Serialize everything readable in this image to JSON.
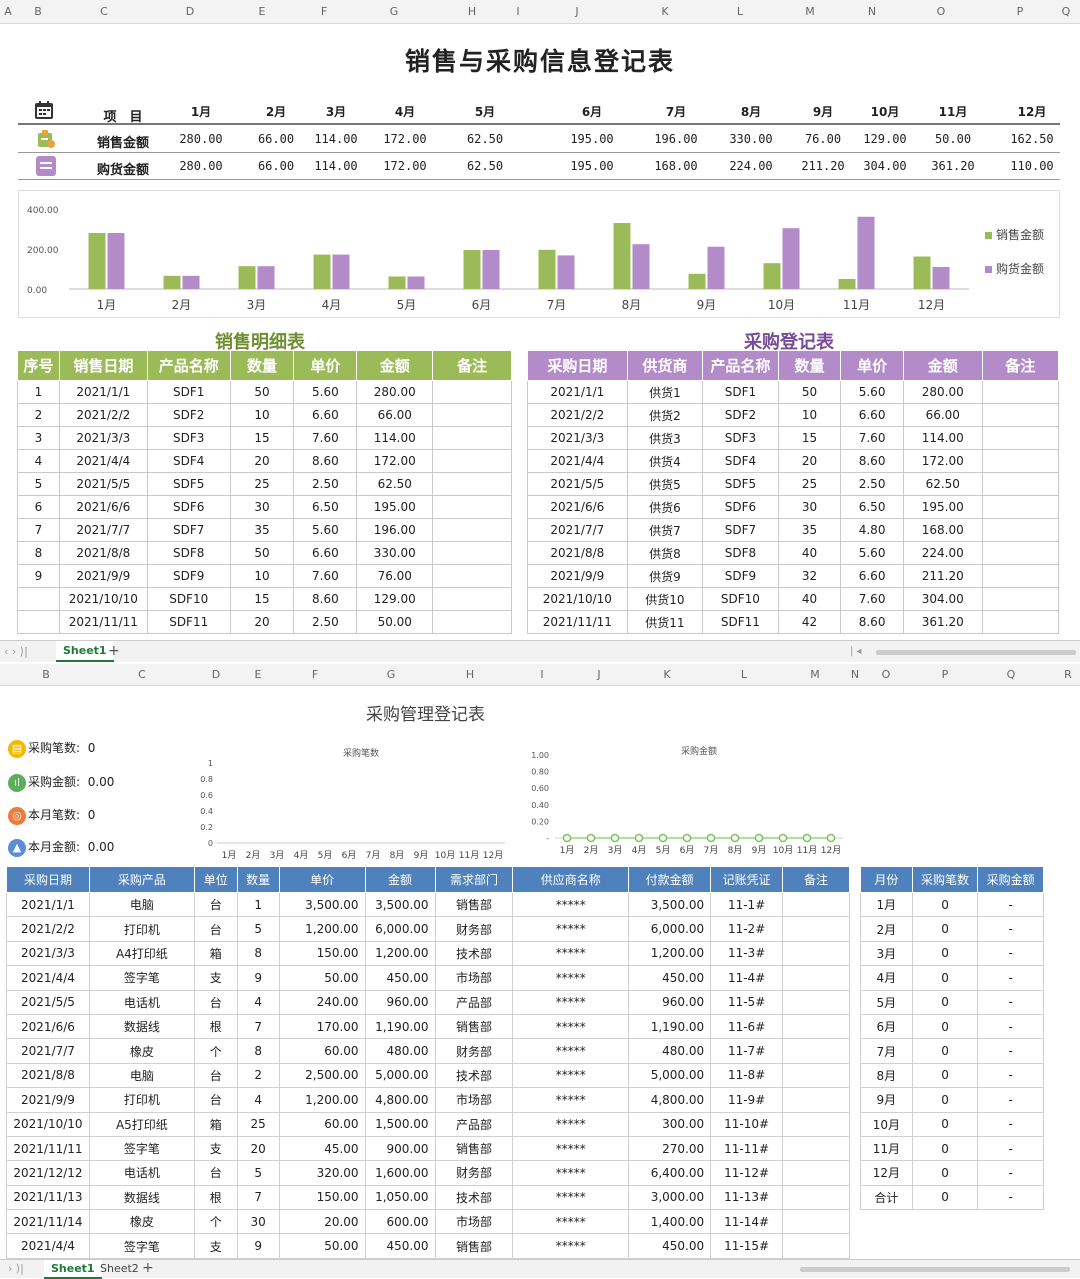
{
  "top_col_headers": [
    "A",
    "B",
    "C",
    "D",
    "E",
    "F",
    "G",
    "H",
    "I",
    "J",
    "K",
    "L",
    "M",
    "N",
    "O",
    "P",
    "Q"
  ],
  "title1": "销售与采购信息登记表",
  "summary": {
    "header_label": "项　目",
    "months": [
      "1月",
      "2月",
      "3月",
      "4月",
      "5月",
      "6月",
      "7月",
      "8月",
      "9月",
      "10月",
      "11月",
      "12月"
    ],
    "sales_label": "销售金额",
    "sales": [
      "280.00",
      "66.00",
      "114.00",
      "172.00",
      "62.50",
      "195.00",
      "196.00",
      "330.00",
      "76.00",
      "129.00",
      "50.00",
      "162.50"
    ],
    "purchase_label": "购货金额",
    "purchase": [
      "280.00",
      "66.00",
      "114.00",
      "172.00",
      "62.50",
      "195.00",
      "168.00",
      "224.00",
      "211.20",
      "304.00",
      "361.20",
      "110.00"
    ]
  },
  "chart_data": [
    {
      "type": "bar",
      "title": "",
      "categories": [
        "1月",
        "2月",
        "3月",
        "4月",
        "5月",
        "6月",
        "7月",
        "8月",
        "9月",
        "10月",
        "11月",
        "12月"
      ],
      "series": [
        {
          "name": "销售金额",
          "values": [
            280,
            66,
            114,
            172,
            62.5,
            195,
            196,
            330,
            76,
            129,
            50,
            162.5
          ]
        },
        {
          "name": "购货金额",
          "values": [
            280,
            66,
            114,
            172,
            62.5,
            195,
            168,
            224,
            211.2,
            304,
            361.2,
            110
          ]
        }
      ],
      "ylim": [
        0,
        400
      ],
      "yticks": [
        "0.00",
        "200.00",
        "400.00"
      ],
      "legend": "right",
      "colors": [
        "#9bbb59",
        "#b28bc8"
      ]
    },
    {
      "type": "line",
      "title": "采购笔数",
      "categories": [
        "1月",
        "2月",
        "3月",
        "4月",
        "5月",
        "6月",
        "7月",
        "8月",
        "9月",
        "10月",
        "11月",
        "12月"
      ],
      "values": [
        0,
        0,
        0,
        0,
        0,
        0,
        0,
        0,
        0,
        0,
        0,
        0
      ],
      "ylim": [
        0,
        1
      ],
      "yticks": [
        "0",
        "0.2",
        "0.4",
        "0.6",
        "0.8",
        "1"
      ]
    },
    {
      "type": "line",
      "title": "采购金额",
      "categories": [
        "1月",
        "2月",
        "3月",
        "4月",
        "5月",
        "6月",
        "7月",
        "8月",
        "9月",
        "10月",
        "11月",
        "12月"
      ],
      "values": [
        0,
        0,
        0,
        0,
        0,
        0,
        0,
        0,
        0,
        0,
        0,
        0
      ],
      "ylim": [
        0,
        1
      ],
      "yticks": [
        "-",
        "0.20",
        "0.40",
        "0.60",
        "0.80",
        "1.00"
      ]
    }
  ],
  "sales_table": {
    "title": "销售明细表",
    "headers": [
      "序号",
      "销售日期",
      "产品名称",
      "数量",
      "单价",
      "金额",
      "备注"
    ],
    "rows": [
      [
        "1",
        "2021/1/1",
        "SDF1",
        "50",
        "5.60",
        "280.00",
        ""
      ],
      [
        "2",
        "2021/2/2",
        "SDF2",
        "10",
        "6.60",
        "66.00",
        ""
      ],
      [
        "3",
        "2021/3/3",
        "SDF3",
        "15",
        "7.60",
        "114.00",
        ""
      ],
      [
        "4",
        "2021/4/4",
        "SDF4",
        "20",
        "8.60",
        "172.00",
        ""
      ],
      [
        "5",
        "2021/5/5",
        "SDF5",
        "25",
        "2.50",
        "62.50",
        ""
      ],
      [
        "6",
        "2021/6/6",
        "SDF6",
        "30",
        "6.50",
        "195.00",
        ""
      ],
      [
        "7",
        "2021/7/7",
        "SDF7",
        "35",
        "5.60",
        "196.00",
        ""
      ],
      [
        "8",
        "2021/8/8",
        "SDF8",
        "50",
        "6.60",
        "330.00",
        ""
      ],
      [
        "9",
        "2021/9/9",
        "SDF9",
        "10",
        "7.60",
        "76.00",
        ""
      ],
      [
        "",
        "2021/10/10",
        "SDF10",
        "15",
        "8.60",
        "129.00",
        ""
      ],
      [
        "",
        "2021/11/11",
        "SDF11",
        "20",
        "2.50",
        "50.00",
        ""
      ]
    ]
  },
  "purchase_table": {
    "title": "采购登记表",
    "headers": [
      "采购日期",
      "供货商",
      "产品名称",
      "数量",
      "单价",
      "金额",
      "备注"
    ],
    "rows": [
      [
        "2021/1/1",
        "供货1",
        "SDF1",
        "50",
        "5.60",
        "280.00",
        ""
      ],
      [
        "2021/2/2",
        "供货2",
        "SDF2",
        "10",
        "6.60",
        "66.00",
        ""
      ],
      [
        "2021/3/3",
        "供货3",
        "SDF3",
        "15",
        "7.60",
        "114.00",
        ""
      ],
      [
        "2021/4/4",
        "供货4",
        "SDF4",
        "20",
        "8.60",
        "172.00",
        ""
      ],
      [
        "2021/5/5",
        "供货5",
        "SDF5",
        "25",
        "2.50",
        "62.50",
        ""
      ],
      [
        "2021/6/6",
        "供货6",
        "SDF6",
        "30",
        "6.50",
        "195.00",
        ""
      ],
      [
        "2021/7/7",
        "供货7",
        "SDF7",
        "35",
        "4.80",
        "168.00",
        ""
      ],
      [
        "2021/8/8",
        "供货8",
        "SDF8",
        "40",
        "5.60",
        "224.00",
        ""
      ],
      [
        "2021/9/9",
        "供货9",
        "SDF9",
        "32",
        "6.60",
        "211.20",
        ""
      ],
      [
        "2021/10/10",
        "供货10",
        "SDF10",
        "40",
        "7.60",
        "304.00",
        ""
      ],
      [
        "2021/11/11",
        "供货11",
        "SDF11",
        "42",
        "8.60",
        "361.20",
        ""
      ]
    ]
  },
  "tabs1": {
    "active": "Sheet1",
    "add": "+"
  },
  "bottom_col_headers": [
    "B",
    "C",
    "D",
    "E",
    "F",
    "G",
    "H",
    "I",
    "J",
    "K",
    "L",
    "M",
    "N",
    "O",
    "P",
    "Q",
    "R"
  ],
  "title2": "采购管理登记表",
  "kpis": [
    {
      "label": "采购笔数:",
      "value": "0"
    },
    {
      "label": "采购金额:",
      "value": "0.00"
    },
    {
      "label": "本月笔数:",
      "value": "0"
    },
    {
      "label": "本月金额:",
      "value": "0.00"
    }
  ],
  "mgmt_table": {
    "headers": [
      "采购日期",
      "采购产品",
      "单位",
      "数量",
      "单价",
      "金额",
      "需求部门",
      "供应商名称",
      "付款金额",
      "记账凭证",
      "备注"
    ],
    "rows": [
      [
        "2021/1/1",
        "电脑",
        "台",
        "1",
        "3,500.00",
        "3,500.00",
        "销售部",
        "*****",
        "3,500.00",
        "11-1#",
        ""
      ],
      [
        "2021/2/2",
        "打印机",
        "台",
        "5",
        "1,200.00",
        "6,000.00",
        "财务部",
        "*****",
        "6,000.00",
        "11-2#",
        ""
      ],
      [
        "2021/3/3",
        "A4打印纸",
        "箱",
        "8",
        "150.00",
        "1,200.00",
        "技术部",
        "*****",
        "1,200.00",
        "11-3#",
        ""
      ],
      [
        "2021/4/4",
        "签字笔",
        "支",
        "9",
        "50.00",
        "450.00",
        "市场部",
        "*****",
        "450.00",
        "11-4#",
        ""
      ],
      [
        "2021/5/5",
        "电话机",
        "台",
        "4",
        "240.00",
        "960.00",
        "产品部",
        "*****",
        "960.00",
        "11-5#",
        ""
      ],
      [
        "2021/6/6",
        "数据线",
        "根",
        "7",
        "170.00",
        "1,190.00",
        "销售部",
        "*****",
        "1,190.00",
        "11-6#",
        ""
      ],
      [
        "2021/7/7",
        "橡皮",
        "个",
        "8",
        "60.00",
        "480.00",
        "财务部",
        "*****",
        "480.00",
        "11-7#",
        ""
      ],
      [
        "2021/8/8",
        "电脑",
        "台",
        "2",
        "2,500.00",
        "5,000.00",
        "技术部",
        "*****",
        "5,000.00",
        "11-8#",
        ""
      ],
      [
        "2021/9/9",
        "打印机",
        "台",
        "4",
        "1,200.00",
        "4,800.00",
        "市场部",
        "*****",
        "4,800.00",
        "11-9#",
        ""
      ],
      [
        "2021/10/10",
        "A5打印纸",
        "箱",
        "25",
        "60.00",
        "1,500.00",
        "产品部",
        "*****",
        "300.00",
        "11-10#",
        ""
      ],
      [
        "2021/11/11",
        "签字笔",
        "支",
        "20",
        "45.00",
        "900.00",
        "销售部",
        "*****",
        "270.00",
        "11-11#",
        ""
      ],
      [
        "2021/12/12",
        "电话机",
        "台",
        "5",
        "320.00",
        "1,600.00",
        "财务部",
        "*****",
        "6,400.00",
        "11-12#",
        ""
      ],
      [
        "2021/11/13",
        "数据线",
        "根",
        "7",
        "150.00",
        "1,050.00",
        "技术部",
        "*****",
        "3,000.00",
        "11-13#",
        ""
      ],
      [
        "2021/11/14",
        "橡皮",
        "个",
        "30",
        "20.00",
        "600.00",
        "市场部",
        "*****",
        "1,400.00",
        "11-14#",
        ""
      ],
      [
        "2021/4/4",
        "签字笔",
        "支",
        "9",
        "50.00",
        "450.00",
        "销售部",
        "*****",
        "450.00",
        "11-15#",
        ""
      ]
    ]
  },
  "month_table": {
    "headers": [
      "月份",
      "采购笔数",
      "采购金额"
    ],
    "rows": [
      [
        "1月",
        "0",
        "-"
      ],
      [
        "2月",
        "0",
        "-"
      ],
      [
        "3月",
        "0",
        "-"
      ],
      [
        "4月",
        "0",
        "-"
      ],
      [
        "5月",
        "0",
        "-"
      ],
      [
        "6月",
        "0",
        "-"
      ],
      [
        "7月",
        "0",
        "-"
      ],
      [
        "8月",
        "0",
        "-"
      ],
      [
        "9月",
        "0",
        "-"
      ],
      [
        "10月",
        "0",
        "-"
      ],
      [
        "11月",
        "0",
        "-"
      ],
      [
        "12月",
        "0",
        "-"
      ],
      [
        "合计",
        "0",
        "-"
      ]
    ]
  },
  "tabs2": {
    "sheets": [
      "Sheet1",
      "Sheet2"
    ],
    "add": "+"
  }
}
